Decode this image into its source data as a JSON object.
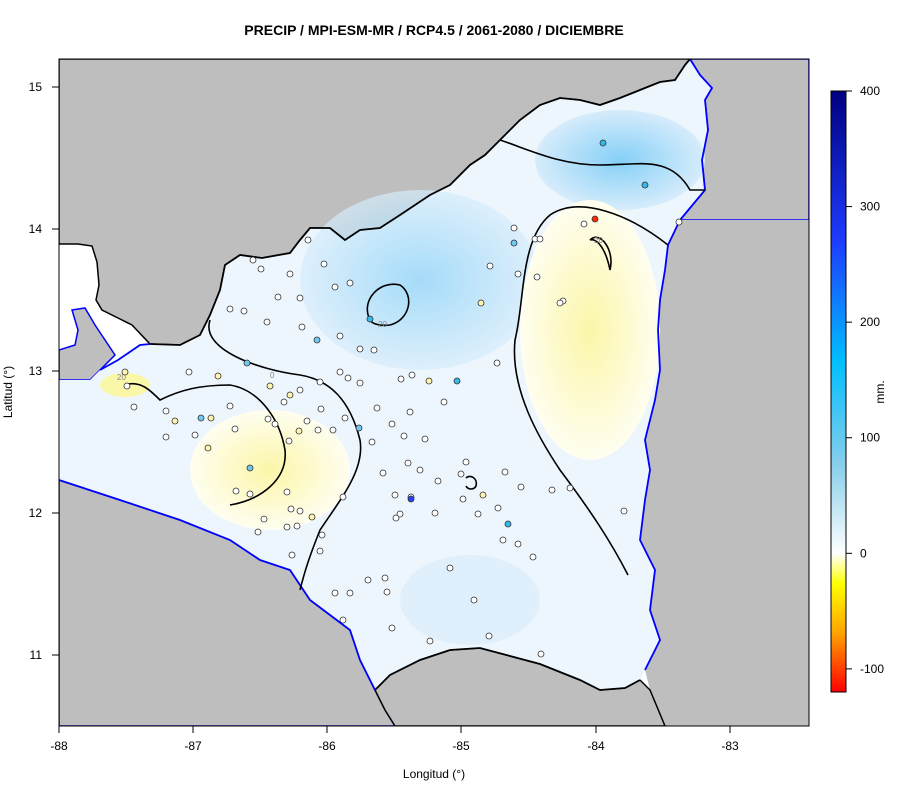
{
  "map": {
    "title": "PRECIP / MPI-ESM-MR / RCP4.5 / 2061-2080 / DICIEMBRE",
    "xlabel": "Longitud (°)",
    "ylabel": "Latitud (°)",
    "xlim": [
      -88,
      -82.4
    ],
    "ylim": [
      10.5,
      15.2
    ],
    "x_ticks": [
      "-88",
      "-87",
      "-86",
      "-85",
      "-84",
      "-83"
    ],
    "y_ticks": [
      "11",
      "12",
      "13",
      "14",
      "15"
    ],
    "contour_labels": [
      "20",
      "20",
      "0",
      "20",
      "20"
    ]
  },
  "legend": {
    "unit_label": "mm.",
    "ticks": [
      "400",
      "300",
      "200",
      "100",
      "0",
      "-100"
    ],
    "range": [
      -120,
      400
    ]
  },
  "colors": {
    "land_outside": "#bebebe",
    "coast": "#0000ff",
    "border": "#000000",
    "wet_light": "#d4ebfb",
    "wet_mid": "#8fd4f8",
    "dry_light": "#fdfbc8"
  }
}
